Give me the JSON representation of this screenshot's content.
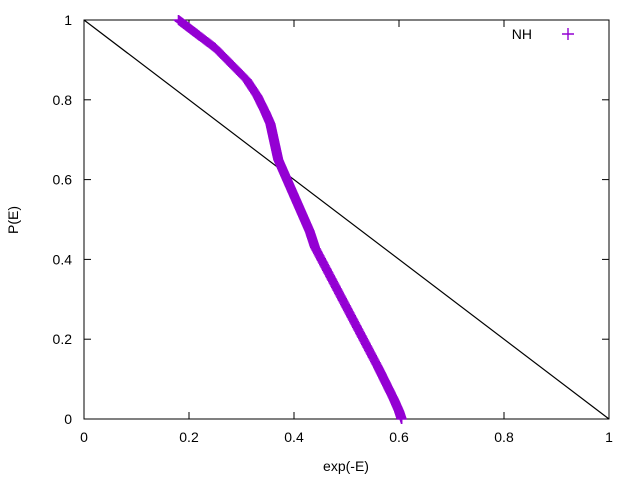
{
  "chart_data": {
    "type": "scatter",
    "xlabel": "exp(-E)",
    "ylabel": "P(E)",
    "xlim": [
      0,
      1
    ],
    "ylim": [
      0,
      1
    ],
    "xticks": [
      0,
      0.2,
      0.4,
      0.6,
      0.8,
      1
    ],
    "yticks": [
      0,
      0.2,
      0.4,
      0.6,
      0.8,
      1
    ],
    "xtick_labels": [
      "0",
      "0.2",
      "0.4",
      "0.6",
      "0.8",
      "1"
    ],
    "ytick_labels": [
      "0",
      "0.2",
      "0.4",
      "0.6",
      "0.8",
      "1"
    ],
    "grid": false,
    "legend_position": "top-right",
    "series": [
      {
        "name": "NH",
        "style": "points",
        "marker": "plus",
        "color": "#9400d3",
        "x": [
          0.18,
          0.2,
          0.22,
          0.25,
          0.28,
          0.31,
          0.33,
          0.345,
          0.355,
          0.36,
          0.365,
          0.37,
          0.38,
          0.39,
          0.4,
          0.41,
          0.42,
          0.43,
          0.44,
          0.46,
          0.48,
          0.5,
          0.52,
          0.54,
          0.56,
          0.575,
          0.59,
          0.6,
          0.605
        ],
        "y": [
          1.0,
          0.98,
          0.96,
          0.93,
          0.89,
          0.85,
          0.81,
          0.77,
          0.74,
          0.71,
          0.68,
          0.65,
          0.62,
          0.59,
          0.56,
          0.53,
          0.5,
          0.47,
          0.43,
          0.38,
          0.33,
          0.28,
          0.23,
          0.18,
          0.13,
          0.09,
          0.05,
          0.02,
          0.0
        ]
      },
      {
        "name": "",
        "style": "line",
        "color": "#000000",
        "x": [
          0,
          1
        ],
        "y": [
          1,
          0
        ]
      }
    ]
  }
}
